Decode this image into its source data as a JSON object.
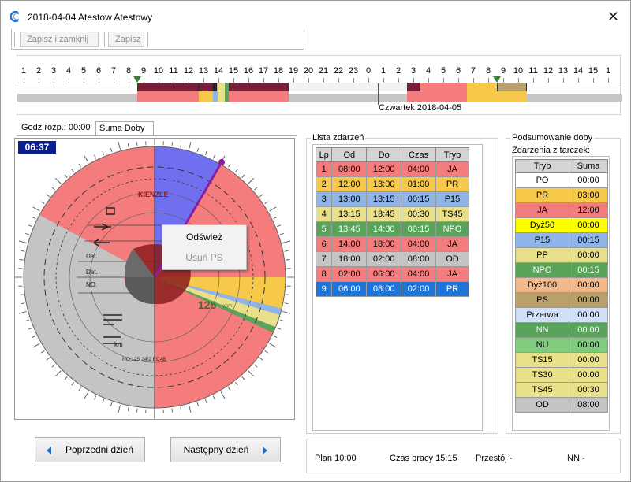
{
  "window": {
    "title": "2018-04-04  Atestow Atestowy",
    "close_glyph": "✕"
  },
  "toolbar": {
    "save_close_label": "Zapisz i zamknij",
    "save_label": "Zapisz"
  },
  "timeline": {
    "hour_labels": [
      "1",
      "2",
      "3",
      "4",
      "5",
      "6",
      "7",
      "8",
      "9",
      "10",
      "11",
      "12",
      "13",
      "14",
      "15",
      "16",
      "17",
      "18",
      "19",
      "20",
      "21",
      "22",
      "23",
      "0",
      "1",
      "2",
      "3",
      "4",
      "5",
      "6",
      "7",
      "8",
      "9",
      "10",
      "11",
      "12",
      "13",
      "14",
      "15",
      "1"
    ],
    "day_label": "Czwartek  2018-04-05"
  },
  "tabs": [
    {
      "label": "Godz rozp.: 00:00"
    },
    {
      "label": "Suma Doby"
    }
  ],
  "disc": {
    "time_badge": "06:37",
    "brand": "KIENZLE",
    "speed": "125",
    "speed_unit": "km/h",
    "footer": "NO.125 24/2 EC4B"
  },
  "context_menu": {
    "items": [
      {
        "label": "Odśwież",
        "enabled": true
      },
      {
        "label": "Usuń PS",
        "enabled": false
      }
    ]
  },
  "nav": {
    "prev_label": "Poprzedni dzień",
    "next_label": "Następny dzień"
  },
  "events": {
    "title": "Lista zdarzeń",
    "headers": [
      "Lp",
      "Od",
      "Do",
      "Czas",
      "Tryb"
    ],
    "rows": [
      {
        "cells": [
          "1",
          "08:00",
          "12:00",
          "04:00",
          "JA"
        ],
        "color": "#f47c7c"
      },
      {
        "cells": [
          "2",
          "12:00",
          "13:00",
          "01:00",
          "PR"
        ],
        "color": "#f7c94a"
      },
      {
        "cells": [
          "3",
          "13:00",
          "13:15",
          "00:15",
          "P15"
        ],
        "color": "#8fb4e8"
      },
      {
        "cells": [
          "4",
          "13:15",
          "13:45",
          "00:30",
          "TS45"
        ],
        "color": "#e8e08a"
      },
      {
        "cells": [
          "5",
          "13:45",
          "14:00",
          "00:15",
          "NPO"
        ],
        "color": "#5aa35a"
      },
      {
        "cells": [
          "6",
          "14:00",
          "18:00",
          "04:00",
          "JA"
        ],
        "color": "#f47c7c"
      },
      {
        "cells": [
          "7",
          "18:00",
          "02:00",
          "08:00",
          "OD"
        ],
        "color": "#c4c4c4"
      },
      {
        "cells": [
          "8",
          "02:00",
          "06:00",
          "04:00",
          "JA"
        ],
        "color": "#f47c7c"
      },
      {
        "cells": [
          "9",
          "06:00",
          "08:00",
          "02:00",
          "PR"
        ],
        "color": "#1f74d8"
      }
    ]
  },
  "summary": {
    "title": "Podsumowanie doby",
    "subtitle": "Zdarzenia z tarczek:",
    "headers": [
      "Tryb",
      "Suma"
    ],
    "rows": [
      {
        "cells": [
          "PO",
          "00:00"
        ],
        "color": "#ffffff"
      },
      {
        "cells": [
          "PR",
          "03:00"
        ],
        "color": "#f7c94a"
      },
      {
        "cells": [
          "JA",
          "12:00"
        ],
        "color": "#f47c7c"
      },
      {
        "cells": [
          "Dyż50",
          "00:00"
        ],
        "color": "#ffff00"
      },
      {
        "cells": [
          "P15",
          "00:15"
        ],
        "color": "#8fb4e8"
      },
      {
        "cells": [
          "PP",
          "00:00"
        ],
        "color": "#e8e08a"
      },
      {
        "cells": [
          "NPO",
          "00:15"
        ],
        "color": "#5aa35a"
      },
      {
        "cells": [
          "Dyż100",
          "00:00"
        ],
        "color": "#f4b98a"
      },
      {
        "cells": [
          "PS",
          "00:00"
        ],
        "color": "#b8a06a"
      },
      {
        "cells": [
          "Przerwa",
          "00:00"
        ],
        "color": "#cfe0f7"
      },
      {
        "cells": [
          "NN",
          "00:00"
        ],
        "color": "#5aa35a"
      },
      {
        "cells": [
          "NU",
          "00:00"
        ],
        "color": "#7fcc7f"
      },
      {
        "cells": [
          "TS15",
          "00:00"
        ],
        "color": "#e8e08a"
      },
      {
        "cells": [
          "TS30",
          "00:00"
        ],
        "color": "#e8e08a"
      },
      {
        "cells": [
          "TS45",
          "00:30"
        ],
        "color": "#e8e08a"
      },
      {
        "cells": [
          "OD",
          "08:00"
        ],
        "color": "#c4c4c4"
      }
    ]
  },
  "status": {
    "plan": "Plan 10:00",
    "work_time": "Czas pracy 15:15",
    "idle": "Przestój -",
    "nn": "NN -"
  }
}
